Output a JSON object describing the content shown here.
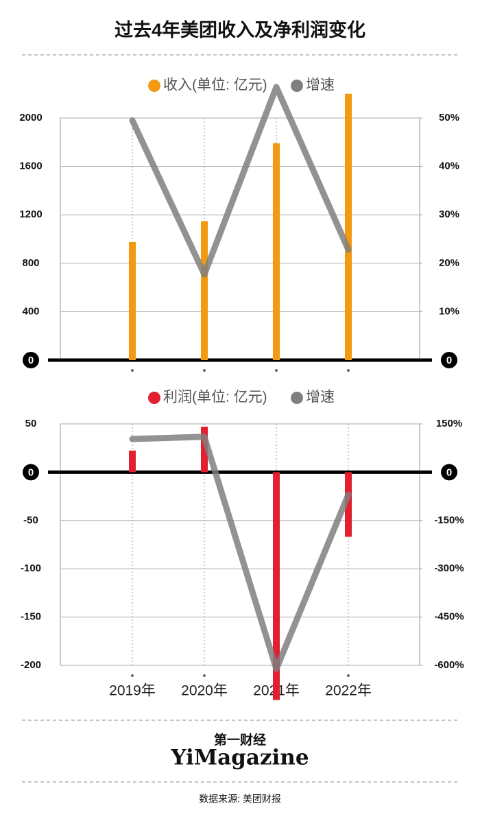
{
  "title": "过去4年美团收入及净利润变化",
  "chart_data": [
    {
      "type": "bar",
      "categories": [
        null,
        null,
        null,
        null
      ],
      "series": [
        {
          "name": "收入(单位: 亿元)",
          "color": "#f39a12",
          "values": [
            975,
            1148,
            1791,
            2200
          ]
        },
        {
          "name": "增速",
          "color": "#7f7f7f",
          "type": "line",
          "axis": "y2",
          "values": [
            49.5,
            17.7,
            56.4,
            22.8
          ]
        }
      ],
      "ylim": [
        0,
        2000
      ],
      "yticks": [
        0,
        400,
        800,
        1200,
        1600,
        2000
      ],
      "y2lim": [
        0,
        50
      ],
      "y2ticks": [
        0,
        {
          "value": 10,
          "label": "10%"
        },
        {
          "value": 20,
          "label": "20%"
        },
        {
          "value": 30,
          "label": "30%"
        },
        {
          "value": 40,
          "label": "40%"
        },
        {
          "value": 50,
          "label": "50%"
        }
      ],
      "grid": true
    },
    {
      "type": "bar",
      "categories": [
        "2019年",
        "2020年",
        "2021年",
        "2022年"
      ],
      "series": [
        {
          "name": "利润(单位: 亿元)",
          "color": "#e3202f",
          "values": [
            22.4,
            47.1,
            -235.9,
            -66.9
          ]
        },
        {
          "name": "增速",
          "color": "#7f7f7f",
          "type": "line",
          "axis": "y2",
          "values": [
            103,
            110,
            -611,
            -70
          ]
        }
      ],
      "ylim": [
        -200,
        50
      ],
      "yticks": [
        -200,
        -150,
        -100,
        -50,
        0,
        50
      ],
      "y2lim": [
        -600,
        150
      ],
      "y2ticks": [
        {
          "value": -600,
          "label": "-600%"
        },
        {
          "value": -450,
          "label": "-450%"
        },
        {
          "value": -300,
          "label": "-300%"
        },
        {
          "value": -150,
          "label": "-150%"
        },
        0,
        {
          "value": 150,
          "label": "150%"
        }
      ],
      "grid": true
    }
  ],
  "footer": {
    "brand": "第一财经",
    "logo": "YiMagazine",
    "source": "数据来源: 美团财报"
  }
}
